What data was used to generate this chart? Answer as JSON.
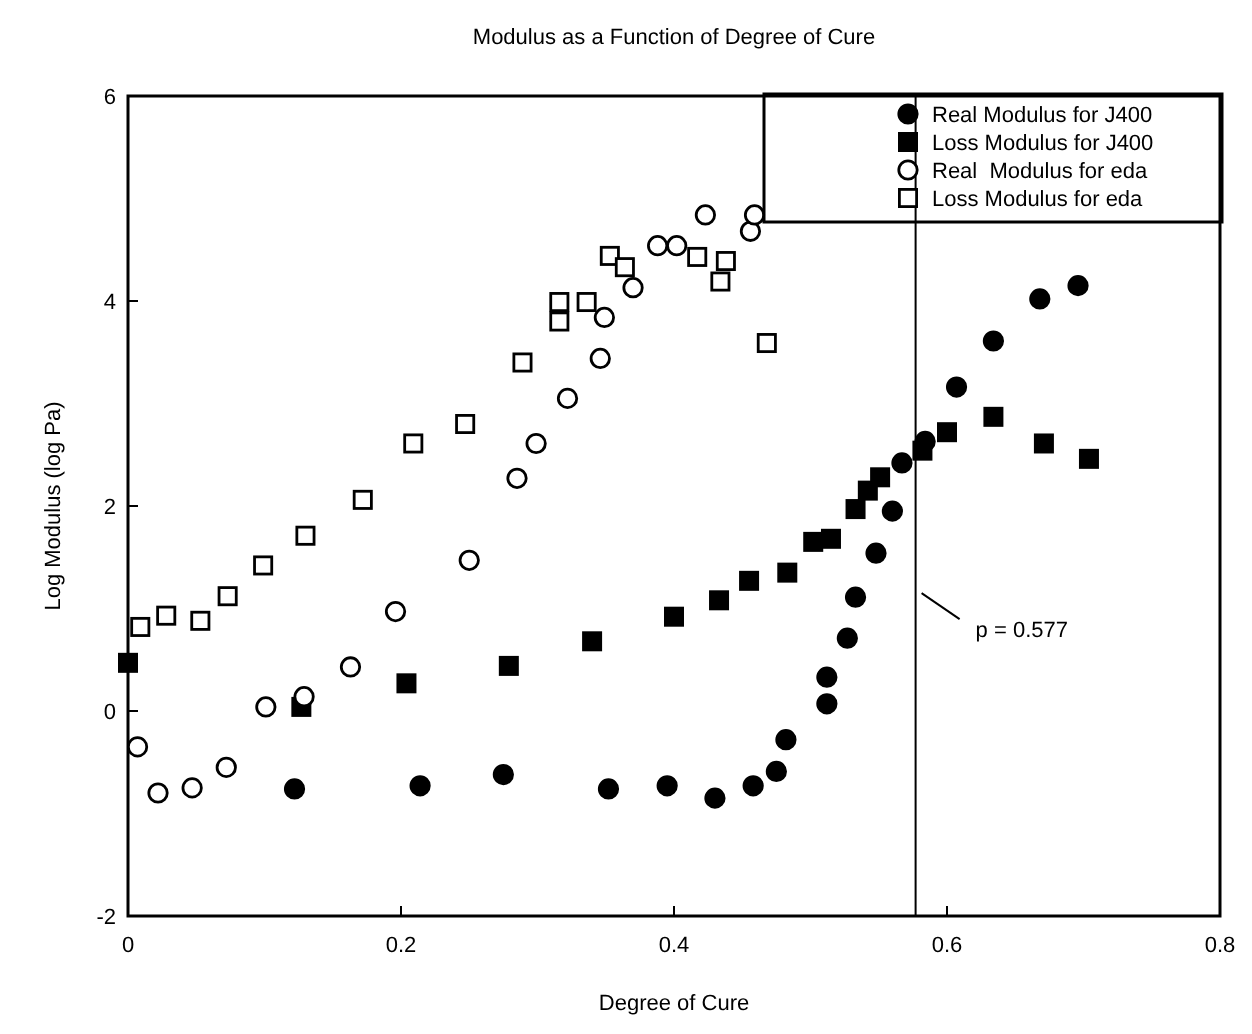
{
  "chart_data": {
    "type": "scatter",
    "title": "Modulus as a Function of Degree of Cure",
    "xlabel": "Degree of Cure",
    "ylabel": "Log Modulus (log Pa)",
    "xlim": [
      0,
      0.8
    ],
    "xticks": [
      {
        "value": 0,
        "label": "0"
      },
      0.2,
      0.4,
      0.6,
      0.8
    ],
    "ylim": [
      -2,
      6
    ],
    "yticks": [
      -2,
      0,
      2,
      4,
      6
    ],
    "grid": false,
    "legend": "top right",
    "ref_lines": [
      {
        "axis": "x",
        "value": 0.577,
        "label": "p = 0.577",
        "color": "#000000"
      }
    ],
    "series": [
      {
        "name": "Real Modulus for J400",
        "color": "#000000",
        "marker": "circle",
        "x": [
          0.122,
          0.214,
          0.275,
          0.352,
          0.395,
          0.43,
          0.458,
          0.475,
          0.482,
          0.512,
          0.512,
          0.527,
          0.533,
          0.548,
          0.56,
          0.567,
          0.584,
          0.607,
          0.634,
          0.668,
          0.696
        ],
        "values": [
          -0.76,
          -0.73,
          -0.62,
          -0.76,
          -0.73,
          -0.85,
          -0.73,
          -0.59,
          -0.28,
          0.07,
          0.33,
          0.71,
          1.11,
          1.54,
          1.95,
          2.42,
          2.63,
          3.16,
          3.61,
          4.02,
          4.15
        ]
      },
      {
        "name": "Loss Modulus for J400",
        "color": "#000000",
        "marker": "square",
        "x": [
          0,
          0.127,
          0.204,
          0.279,
          0.34,
          0.4,
          0.433,
          0.455,
          0.483,
          0.502,
          0.515,
          0.533,
          0.542,
          0.551,
          0.582,
          0.6,
          0.634,
          0.671,
          0.704
        ],
        "values": [
          0.47,
          0.04,
          0.27,
          0.44,
          0.68,
          0.92,
          1.08,
          1.27,
          1.35,
          1.65,
          1.68,
          1.97,
          2.15,
          2.28,
          2.54,
          2.72,
          2.87,
          2.61,
          2.46
        ]
      },
      {
        "name": "Real  Modulus for eda",
        "color": "#ffffff",
        "marker": "circle",
        "x": [
          0.007,
          0.022,
          0.047,
          0.072,
          0.101,
          0.129,
          0.163,
          0.196,
          0.25,
          0.285,
          0.299,
          0.322,
          0.346,
          0.349,
          0.37,
          0.388,
          0.402,
          0.423,
          0.456,
          0.459
        ],
        "values": [
          -0.35,
          -0.8,
          -0.75,
          -0.55,
          0.04,
          0.14,
          0.43,
          0.97,
          1.47,
          2.27,
          2.61,
          3.05,
          3.44,
          3.84,
          4.13,
          4.54,
          4.54,
          4.84,
          4.68,
          4.84
        ]
      },
      {
        "name": "Loss Modulus for eda",
        "color": "#ffffff",
        "marker": "square",
        "x": [
          0.009,
          0.028,
          0.053,
          0.073,
          0.099,
          0.13,
          0.172,
          0.209,
          0.247,
          0.289,
          0.316,
          0.316,
          0.336,
          0.353,
          0.364,
          0.417,
          0.434,
          0.438,
          0.468
        ],
        "values": [
          0.82,
          0.93,
          0.88,
          1.12,
          1.42,
          1.71,
          2.06,
          2.61,
          2.8,
          3.4,
          3.8,
          3.99,
          3.99,
          4.44,
          4.33,
          4.43,
          4.19,
          4.39,
          3.59
        ]
      }
    ]
  }
}
